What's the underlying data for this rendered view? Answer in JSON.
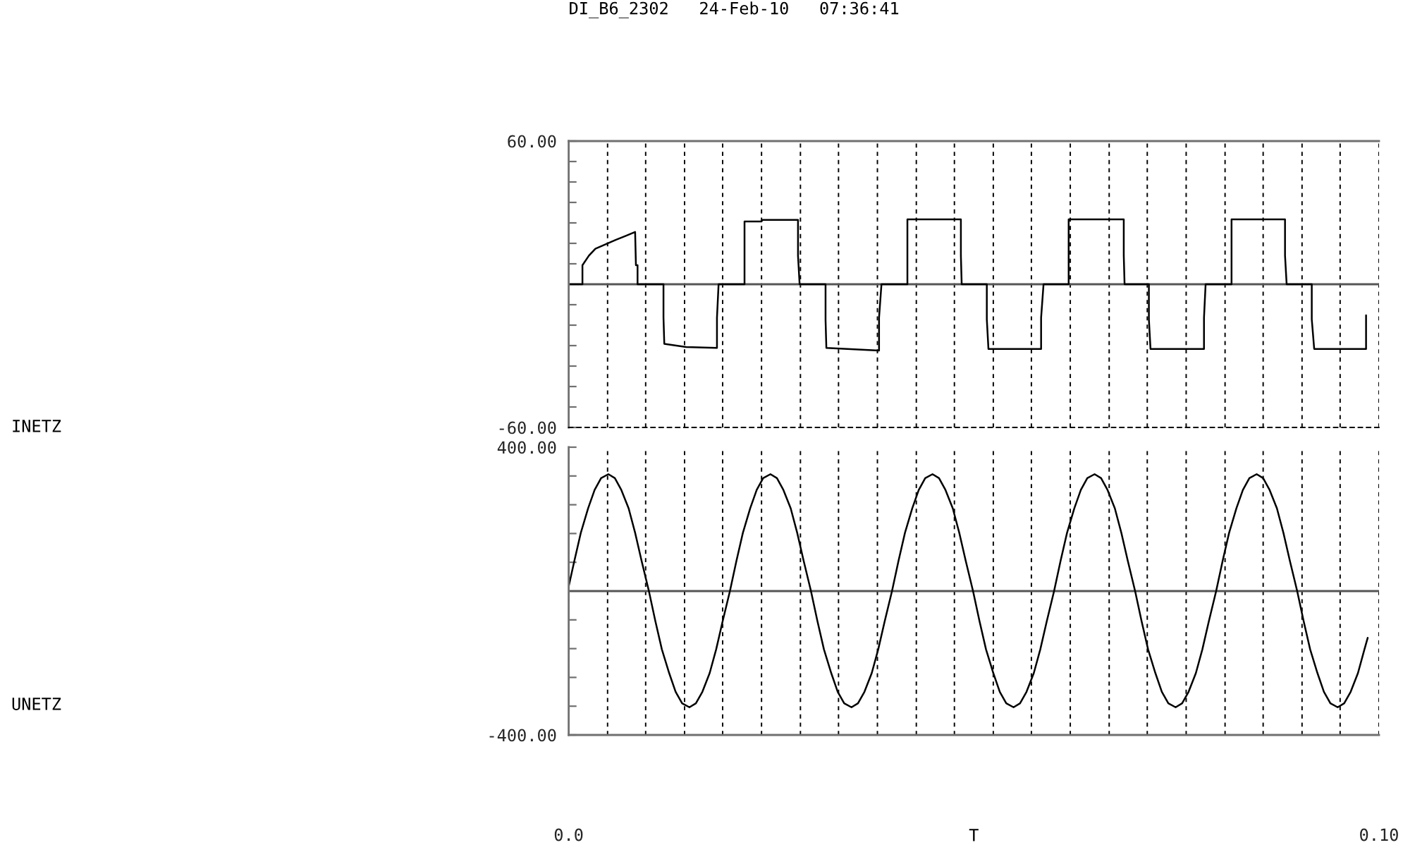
{
  "chart_data": [
    {
      "type": "line",
      "title": "DI_B6_2302   24-Feb-10   07:36:41",
      "ylabel": "INETZ",
      "xlim": [
        0,
        0.1
      ],
      "xticks": [
        {
          "value": 0.0048,
          "label": null
        },
        {
          "value": 0.0095,
          "label": null
        },
        {
          "value": 0.0143,
          "label": null
        },
        {
          "value": 0.019,
          "label": null
        },
        {
          "value": 0.0238,
          "label": null
        },
        {
          "value": 0.0286,
          "label": null
        },
        {
          "value": 0.0333,
          "label": null
        },
        {
          "value": 0.0381,
          "label": null
        },
        {
          "value": 0.0429,
          "label": null
        },
        {
          "value": 0.0476,
          "label": null
        },
        {
          "value": 0.0524,
          "label": null
        },
        {
          "value": 0.0571,
          "label": null
        },
        {
          "value": 0.0619,
          "label": null
        },
        {
          "value": 0.0667,
          "label": null
        },
        {
          "value": 0.0714,
          "label": null
        },
        {
          "value": 0.0762,
          "label": null
        },
        {
          "value": 0.081,
          "label": null
        },
        {
          "value": 0.0857,
          "label": null
        },
        {
          "value": 0.0905,
          "label": null
        },
        {
          "value": 0.0952,
          "label": null
        },
        {
          "value": 0.1,
          "label": null
        }
      ],
      "ylim": [
        -60,
        60
      ],
      "yticks": [
        {
          "value": -60,
          "label": "-60.00"
        },
        {
          "value": -51.43,
          "label": null
        },
        {
          "value": -42.86,
          "label": null
        },
        {
          "value": -34.29,
          "label": null
        },
        {
          "value": -25.71,
          "label": null
        },
        {
          "value": -17.14,
          "label": null
        },
        {
          "value": -8.57,
          "label": null
        },
        {
          "value": 8.57,
          "label": null
        },
        {
          "value": 17.14,
          "label": null
        },
        {
          "value": 25.71,
          "label": null
        },
        {
          "value": 34.29,
          "label": null
        },
        {
          "value": 42.86,
          "label": null
        },
        {
          "value": 51.43,
          "label": null
        },
        {
          "value": 60,
          "label": "60.00"
        }
      ],
      "grid": "x",
      "tick_labels": "y",
      "ref_lines": [
        {
          "axis": "y",
          "value": 0,
          "color": "#555555"
        }
      ],
      "series": [
        {
          "color": "#000000",
          "x": [
            0,
            0.0017,
            0.0017,
            0.0025,
            0.0033,
            0.0042,
            0.0058,
            0.007,
            0.0082,
            0.0083,
            0.0085,
            0.0085,
            0.0117,
            0.0117,
            0.0118,
            0.0145,
            0.0183,
            0.0183,
            0.0185,
            0.0217,
            0.0217,
            0.0238,
            0.0239,
            0.0283,
            0.0283,
            0.0285,
            0.0317,
            0.0317,
            0.0318,
            0.0383,
            0.0383,
            0.0386,
            0.0418,
            0.0418,
            0.0484,
            0.0484,
            0.0485,
            0.0516,
            0.0516,
            0.0518,
            0.0583,
            0.0583,
            0.0586,
            0.0617,
            0.0617,
            0.0685,
            0.0685,
            0.0686,
            0.0716,
            0.0716,
            0.0718,
            0.0784,
            0.0784,
            0.0786,
            0.0818,
            0.0818,
            0.0884,
            0.0884,
            0.0886,
            0.0917,
            0.0917,
            0.092,
            0.0984,
            0.0984
          ],
          "values": [
            0,
            0,
            8,
            12,
            14.9,
            16.2,
            18.6,
            20.2,
            21.9,
            8,
            8,
            0,
            0,
            -14,
            -25,
            -26.3,
            -26.7,
            -14,
            0,
            0,
            26.3,
            26.3,
            27,
            27,
            12,
            0,
            0,
            -15,
            -26.7,
            -27.8,
            -14,
            0,
            0,
            27.2,
            27.2,
            12,
            0,
            0,
            -14.7,
            -27.1,
            -27.1,
            -14,
            0,
            0,
            27.2,
            27.2,
            12,
            0,
            0,
            -14.7,
            -27.1,
            -27.1,
            -14,
            0,
            0,
            27.2,
            27.2,
            12,
            0,
            0,
            -14.7,
            -27.1,
            -27.1,
            -13
          ]
        }
      ]
    },
    {
      "type": "line",
      "ylabel": "UNETZ",
      "xlabel": "T",
      "xlim": [
        0,
        0.1
      ],
      "xticks": [
        {
          "value": 0,
          "label": "0.0"
        },
        {
          "value": 0.0048,
          "label": null
        },
        {
          "value": 0.0095,
          "label": null
        },
        {
          "value": 0.0143,
          "label": null
        },
        {
          "value": 0.019,
          "label": null
        },
        {
          "value": 0.0238,
          "label": null
        },
        {
          "value": 0.0286,
          "label": null
        },
        {
          "value": 0.0333,
          "label": null
        },
        {
          "value": 0.0381,
          "label": null
        },
        {
          "value": 0.0429,
          "label": null
        },
        {
          "value": 0.0476,
          "label": null
        },
        {
          "value": 0.0524,
          "label": null
        },
        {
          "value": 0.0571,
          "label": null
        },
        {
          "value": 0.0619,
          "label": null
        },
        {
          "value": 0.0667,
          "label": null
        },
        {
          "value": 0.0714,
          "label": null
        },
        {
          "value": 0.0762,
          "label": null
        },
        {
          "value": 0.081,
          "label": null
        },
        {
          "value": 0.0857,
          "label": null
        },
        {
          "value": 0.0905,
          "label": null
        },
        {
          "value": 0.0952,
          "label": null
        },
        {
          "value": 0.1,
          "label": "0.10"
        }
      ],
      "ylim": [
        -400,
        400
      ],
      "yticks": [
        {
          "value": -400,
          "label": "-400.00"
        },
        {
          "value": -320,
          "label": null
        },
        {
          "value": -240,
          "label": null
        },
        {
          "value": -160,
          "label": null
        },
        {
          "value": -80,
          "label": null
        },
        {
          "value": 80,
          "label": null
        },
        {
          "value": 160,
          "label": null
        },
        {
          "value": 240,
          "label": null
        },
        {
          "value": 320,
          "label": null
        },
        {
          "value": 400,
          "label": "400.00"
        }
      ],
      "grid": "x",
      "ref_lines": [
        {
          "axis": "y",
          "value": 0,
          "color": "#555555"
        }
      ],
      "series": [
        {
          "color": "#000000",
          "x": [
            0,
            0.0007,
            0.0015,
            0.0024,
            0.0032,
            0.004,
            0.0049,
            0.0057,
            0.0065,
            0.0074,
            0.0082,
            0.009,
            0.0099,
            0.0107,
            0.0115,
            0.0124,
            0.0132,
            0.014,
            0.0149,
            0.0157,
            0.0165,
            0.0174,
            0.0182,
            0.019,
            0.0199,
            0.0207,
            0.0215,
            0.0224,
            0.0232,
            0.024,
            0.0249,
            0.0257,
            0.0265,
            0.0274,
            0.0282,
            0.029,
            0.0299,
            0.0307,
            0.0315,
            0.0324,
            0.0332,
            0.034,
            0.0349,
            0.0357,
            0.0365,
            0.0374,
            0.0382,
            0.039,
            0.0399,
            0.0407,
            0.0415,
            0.0424,
            0.0432,
            0.044,
            0.0449,
            0.0457,
            0.0465,
            0.0474,
            0.0482,
            0.049,
            0.0499,
            0.0507,
            0.0515,
            0.0524,
            0.0532,
            0.054,
            0.0549,
            0.0557,
            0.0565,
            0.0574,
            0.0582,
            0.059,
            0.0599,
            0.0607,
            0.0615,
            0.0624,
            0.0632,
            0.064,
            0.0649,
            0.0657,
            0.0665,
            0.0674,
            0.0682,
            0.069,
            0.0699,
            0.0707,
            0.0715,
            0.0724,
            0.0732,
            0.074,
            0.0749,
            0.0757,
            0.0765,
            0.0774,
            0.0782,
            0.079,
            0.0799,
            0.0807,
            0.0815,
            0.0824,
            0.0832,
            0.084,
            0.0849,
            0.0857,
            0.0865,
            0.0874,
            0.0882,
            0.089,
            0.0899,
            0.0907,
            0.0915,
            0.0924,
            0.0932,
            0.094,
            0.0949,
            0.0957,
            0.0965,
            0.0974,
            0.0982,
            0.0986
          ],
          "values": [
            13,
            84,
            162,
            230,
            281,
            314,
            325,
            314,
            281,
            230,
            162,
            84,
            0,
            -84,
            -162,
            -228,
            -280,
            -312,
            -323,
            -312,
            -280,
            -228,
            -162,
            -84,
            0,
            84,
            162,
            230,
            281,
            314,
            325,
            314,
            281,
            230,
            162,
            84,
            0,
            -84,
            -162,
            -228,
            -280,
            -312,
            -323,
            -312,
            -280,
            -228,
            -162,
            -84,
            0,
            84,
            162,
            230,
            281,
            314,
            325,
            314,
            281,
            230,
            162,
            84,
            0,
            -84,
            -162,
            -228,
            -280,
            -312,
            -323,
            -312,
            -280,
            -228,
            -162,
            -84,
            0,
            84,
            162,
            230,
            281,
            314,
            325,
            314,
            281,
            230,
            162,
            84,
            0,
            -84,
            -162,
            -228,
            -280,
            -312,
            -323,
            -312,
            -280,
            -228,
            -162,
            -84,
            0,
            84,
            162,
            230,
            281,
            314,
            325,
            314,
            281,
            230,
            162,
            84,
            0,
            -84,
            -162,
            -228,
            -280,
            -312,
            -323,
            -312,
            -280,
            -228,
            -162,
            -130
          ]
        }
      ]
    }
  ]
}
